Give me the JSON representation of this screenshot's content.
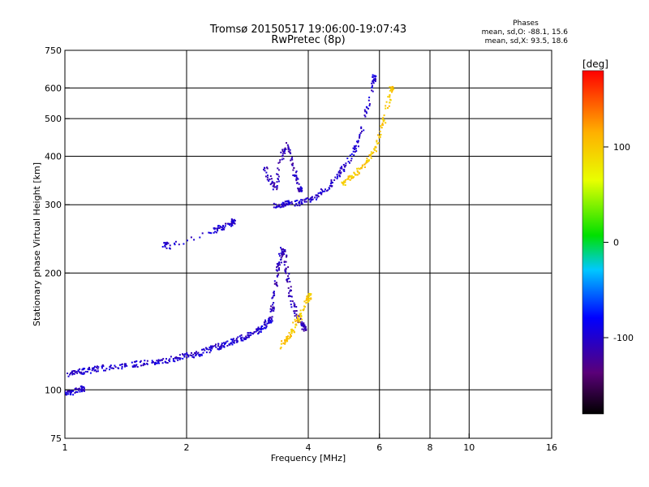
{
  "header": {
    "title": "Tromsø 20150517 19:06:00-19:07:43",
    "subtitle": "RwPretec (8p)",
    "stats_title": "Phases",
    "stats_o": "mean, sd,O: -88.1, 15.6",
    "stats_x": "mean, sd,X:  93.5, 18.6"
  },
  "chart_data": {
    "type": "scatter",
    "xlabel": "Frequency [MHz]",
    "ylabel": "Stationary phase Virtual Height [km]",
    "x_scale": "log",
    "y_scale": "log",
    "xlim": [
      1,
      16
    ],
    "ylim": [
      75,
      750
    ],
    "x_ticks": [
      1,
      2,
      4,
      6,
      8,
      10,
      16
    ],
    "x_gridlines": [
      2,
      4,
      6,
      8,
      10
    ],
    "y_ticks": [
      75,
      100,
      200,
      300,
      400,
      500,
      600,
      750
    ],
    "y_gridlines": [
      100,
      200,
      300,
      400,
      500,
      600
    ],
    "grid": true,
    "colorbar": {
      "label": "[deg]",
      "range": [
        -180,
        180
      ],
      "ticks": [
        -100,
        0,
        100
      ],
      "colormap": "rainbow (black-purple-blue-cyan-green-yellow-red)"
    },
    "colors": {
      "o_mode": "#1f3fe0",
      "x_mode": "#f2d200",
      "grid": "#000000",
      "background": "#ffffff"
    },
    "traces": [
      {
        "name": "",
        "mode": "O",
        "phase": -100,
        "x": [
          1.0,
          1.05,
          1.1,
          1.15,
          1.2,
          1.3,
          1.4,
          1.5,
          1.6,
          1.7,
          1.8,
          1.9,
          2.0,
          2.1,
          2.2,
          2.3,
          2.4,
          2.5,
          2.6,
          2.7,
          2.8,
          2.9,
          3.0,
          3.1,
          3.2
        ],
        "y": [
          110,
          111,
          112,
          113,
          114,
          115,
          116,
          117,
          118,
          119,
          120,
          122,
          123,
          124,
          126,
          128,
          130,
          132,
          134,
          136,
          138,
          140,
          143,
          147,
          152
        ]
      },
      {
        "name": "",
        "mode": "O",
        "phase": -100,
        "x": [
          1.0,
          1.03,
          1.06,
          1.1
        ],
        "y": [
          98,
          99,
          100,
          101
        ]
      },
      {
        "name": "",
        "mode": "O",
        "phase": -110,
        "x": [
          3.2,
          3.25,
          3.3,
          3.35,
          3.4,
          3.45,
          3.5,
          3.55,
          3.6,
          3.7,
          3.8,
          3.9
        ],
        "y": [
          150,
          165,
          185,
          205,
          222,
          235,
          215,
          195,
          175,
          160,
          150,
          145
        ]
      },
      {
        "name": "",
        "mode": "X",
        "phase": 100,
        "x": [
          3.4,
          3.5,
          3.6,
          3.7,
          3.8,
          3.9,
          4.0
        ],
        "y": [
          130,
          135,
          140,
          148,
          155,
          165,
          175
        ]
      },
      {
        "name": "",
        "mode": "O",
        "phase": -100,
        "x": [
          3.3,
          3.4,
          3.5,
          3.6,
          3.8,
          4.0,
          4.2,
          4.4,
          4.6,
          4.8,
          5.0,
          5.2,
          5.4,
          5.6,
          5.8
        ],
        "y": [
          300,
          302,
          303,
          304,
          305,
          310,
          318,
          330,
          345,
          365,
          390,
          420,
          470,
          550,
          640
        ]
      },
      {
        "name": "",
        "mode": "O",
        "phase": -110,
        "x": [
          3.1,
          3.2,
          3.3,
          3.4,
          3.5,
          3.6,
          3.7,
          3.8
        ],
        "y": [
          380,
          350,
          330,
          390,
          430,
          410,
          360,
          330
        ]
      },
      {
        "name": "",
        "mode": "X",
        "phase": 100,
        "x": [
          4.8,
          5.0,
          5.2,
          5.4,
          5.6,
          5.8,
          6.0,
          6.2,
          6.4
        ],
        "y": [
          340,
          350,
          360,
          375,
          395,
          420,
          460,
          520,
          600
        ]
      },
      {
        "name": "",
        "mode": "O",
        "phase": -100,
        "x": [
          1.75,
          1.8,
          2.3,
          2.4,
          2.5,
          2.6
        ],
        "y": [
          238,
          236,
          258,
          262,
          266,
          272
        ]
      }
    ]
  }
}
